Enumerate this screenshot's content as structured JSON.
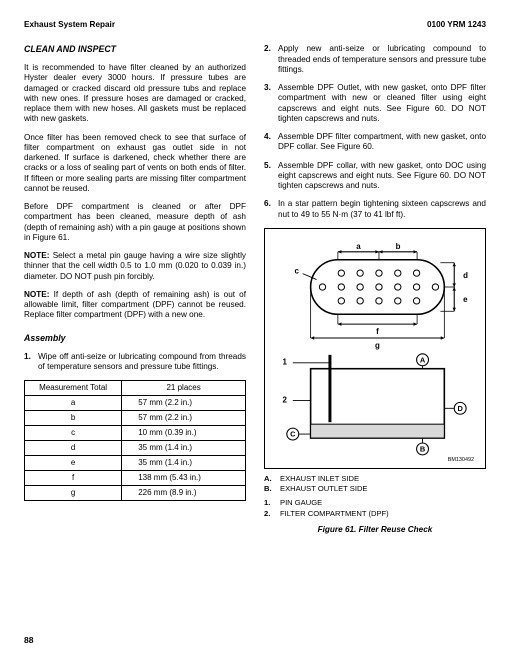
{
  "header": {
    "left": "Exhaust System Repair",
    "right": "0100 YRM 1243"
  },
  "left": {
    "h1": "CLEAN AND INSPECT",
    "p1": "It is recommended to have filter cleaned by an authorized Hyster dealer every 3000 hours. If pressure tubes are damaged or cracked discard old pressure tubs and replace with new ones. If pressure hoses are damaged or cracked, replace them with new hoses. All gaskets must be replaced with new gaskets.",
    "p2": "Once filter has been removed check to see that surface of filter compartment on exhaust gas outlet side in not darkened. If surface is darkened, check whether there are cracks or a loss of sealing part of vents on both ends of filter. If fifteen or more sealing parts are missing filter compartment cannot be reused.",
    "p3": "Before DPF compartment is cleaned or after DPF compartment has been cleaned, measure depth of ash (depth of remaining ash) with a pin gauge at positions shown in Figure 61.",
    "note1_lead": "NOTE:",
    "note1": " Select a metal pin gauge having a wire size slightly thinner that the cell width 0.5 to 1.0 mm (0.020 to 0.039 in.) diameter. DO NOT push pin forcibly.",
    "note2_lead": "NOTE:",
    "note2": " If depth of ash (depth of remaining ash) is out of allowable limit, filter compartment (DPF) cannot be reused. Replace filter compartment (DPF) with a new one.",
    "h2": "Assembly",
    "li1": "Wipe off anti-seize or lubricating compound from threads of temperature sensors and pressure tube fittings.",
    "th1": "Measurement Total",
    "th2": "21 places",
    "rows": [
      {
        "k": "a",
        "v": "57 mm  (2.2 in.)"
      },
      {
        "k": "b",
        "v": "57 mm  (2.2 in.)"
      },
      {
        "k": "c",
        "v": "10 mm  (0.39 in.)"
      },
      {
        "k": "d",
        "v": "35 mm  (1.4 in.)"
      },
      {
        "k": "e",
        "v": "35 mm  (1.4 in.)"
      },
      {
        "k": "f",
        "v": "138 mm  (5.43 in.)"
      },
      {
        "k": "g",
        "v": "226 mm  (8.9 in.)"
      }
    ]
  },
  "right": {
    "li2": "Apply new anti-seize or lubricating compound to threaded ends of temperature sensors and pressure tube fittings.",
    "li3": "Assemble DPF Outlet, with new gasket, onto DPF filter compartment with new or cleaned filter using eight capscrews and eight nuts. See Figure 60. DO NOT tighten capscrews and nuts.",
    "li4": "Assemble DPF filter compartment, with new gasket, onto DPF collar. See Figure 60.",
    "li5": "Assemble DPF collar, with new gasket, onto DOC using eight capscrews and eight nuts. See Figure 60. DO NOT tighten capscrews and nuts.",
    "li6": "In a star pattern begin tightening sixteen capscrews and nut to 49 to 55 N·m (37 to 41 lbf ft).",
    "legendA": "EXHAUST INLET SIDE",
    "legendB": "EXHAUST OUTLET SIDE",
    "legend1": "PIN GAUGE",
    "legend2": "FILTER COMPARTMENT (DPF)",
    "caption": "Figure 61. Filter Reuse Check",
    "partno": "BM130492"
  },
  "svg": {
    "labels": {
      "a": "a",
      "b": "b",
      "c": "c",
      "d": "d",
      "e": "e",
      "f": "f",
      "g": "g",
      "one": "1",
      "two": "2",
      "A": "A",
      "B": "B",
      "C": "C",
      "D": "D"
    },
    "colors": {
      "stroke": "#000000",
      "fill": "#ffffff",
      "light": "#d9d9d9"
    },
    "lineWidth": 1.1
  },
  "pagenum": "88"
}
